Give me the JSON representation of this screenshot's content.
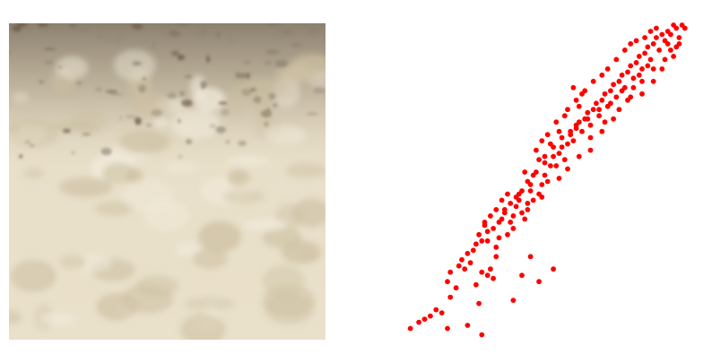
{
  "image_panel": {
    "subject": "sand-texture-photo",
    "colors": {
      "base": "#e6dcc4",
      "light": "#f2ecdc",
      "shadow": "#cdc0a2",
      "dark": "#8d8070",
      "debris": "#6e5a4a"
    }
  },
  "chart_data": {
    "type": "scatter",
    "title": "",
    "xlabel": "",
    "ylabel": "",
    "axes_visible": false,
    "grid": false,
    "legend": "none",
    "xlim": [
      0,
      1
    ],
    "ylim": [
      0,
      1
    ],
    "marker_color": "#ff0000",
    "series": [
      {
        "color": "#ff0000",
        "points": [
          [
            0.03,
            0.03
          ],
          [
            0.08,
            0.06
          ],
          [
            0.14,
            0.08
          ],
          [
            0.16,
            0.03
          ],
          [
            0.23,
            0.04
          ],
          [
            0.27,
            0.11
          ],
          [
            0.39,
            0.12
          ],
          [
            0.28,
            0.01
          ],
          [
            0.16,
            0.18
          ],
          [
            0.17,
            0.21
          ],
          [
            0.2,
            0.23
          ],
          [
            0.26,
            0.17
          ],
          [
            0.28,
            0.21
          ],
          [
            0.3,
            0.2
          ],
          [
            0.31,
            0.22
          ],
          [
            0.32,
            0.19
          ],
          [
            0.42,
            0.2
          ],
          [
            0.48,
            0.18
          ],
          [
            0.53,
            0.22
          ],
          [
            0.45,
            0.26
          ],
          [
            0.33,
            0.26
          ],
          [
            0.28,
            0.31
          ],
          [
            0.29,
            0.36
          ],
          [
            0.3,
            0.34
          ],
          [
            0.33,
            0.29
          ],
          [
            0.34,
            0.32
          ],
          [
            0.35,
            0.38
          ],
          [
            0.36,
            0.4
          ],
          [
            0.38,
            0.37
          ],
          [
            0.39,
            0.39
          ],
          [
            0.4,
            0.42
          ],
          [
            0.41,
            0.44
          ],
          [
            0.42,
            0.4
          ],
          [
            0.43,
            0.38
          ],
          [
            0.44,
            0.43
          ],
          [
            0.45,
            0.47
          ],
          [
            0.46,
            0.44
          ],
          [
            0.48,
            0.46
          ],
          [
            0.49,
            0.49
          ],
          [
            0.5,
            0.52
          ],
          [
            0.51,
            0.5
          ],
          [
            0.52,
            0.55
          ],
          [
            0.53,
            0.58
          ],
          [
            0.54,
            0.55
          ],
          [
            0.55,
            0.59
          ],
          [
            0.56,
            0.61
          ],
          [
            0.57,
            0.57
          ],
          [
            0.58,
            0.62
          ],
          [
            0.59,
            0.65
          ],
          [
            0.6,
            0.63
          ],
          [
            0.61,
            0.67
          ],
          [
            0.62,
            0.69
          ],
          [
            0.63,
            0.66
          ],
          [
            0.64,
            0.7
          ],
          [
            0.65,
            0.72
          ],
          [
            0.66,
            0.68
          ],
          [
            0.67,
            0.73
          ],
          [
            0.68,
            0.75
          ],
          [
            0.69,
            0.71
          ],
          [
            0.7,
            0.76
          ],
          [
            0.71,
            0.78
          ],
          [
            0.72,
            0.74
          ],
          [
            0.73,
            0.79
          ],
          [
            0.74,
            0.81
          ],
          [
            0.75,
            0.77
          ],
          [
            0.76,
            0.82
          ],
          [
            0.77,
            0.84
          ],
          [
            0.78,
            0.8
          ],
          [
            0.79,
            0.85
          ],
          [
            0.8,
            0.87
          ],
          [
            0.81,
            0.83
          ],
          [
            0.82,
            0.88
          ],
          [
            0.83,
            0.9
          ],
          [
            0.84,
            0.86
          ],
          [
            0.85,
            0.91
          ],
          [
            0.86,
            0.93
          ],
          [
            0.87,
            0.89
          ],
          [
            0.88,
            0.94
          ],
          [
            0.89,
            0.96
          ],
          [
            0.9,
            0.92
          ],
          [
            0.91,
            0.97
          ],
          [
            0.92,
            0.95
          ],
          [
            0.93,
            0.98
          ],
          [
            0.94,
            0.97
          ],
          [
            0.95,
            1.0
          ],
          [
            0.96,
            0.99
          ],
          [
            0.98,
            1.0
          ],
          [
            0.99,
            0.99
          ],
          [
            0.6,
            0.8
          ],
          [
            0.63,
            0.78
          ],
          [
            0.62,
            0.74
          ],
          [
            0.66,
            0.64
          ],
          [
            0.7,
            0.66
          ],
          [
            0.74,
            0.7
          ],
          [
            0.79,
            0.76
          ],
          [
            0.84,
            0.78
          ],
          [
            0.88,
            0.82
          ],
          [
            0.91,
            0.86
          ],
          [
            0.95,
            0.9
          ],
          [
            0.96,
            0.93
          ],
          [
            0.97,
            0.96
          ],
          [
            0.55,
            0.66
          ],
          [
            0.52,
            0.62
          ],
          [
            0.5,
            0.58
          ],
          [
            0.48,
            0.57
          ],
          [
            0.46,
            0.52
          ],
          [
            0.44,
            0.5
          ],
          [
            0.42,
            0.47
          ],
          [
            0.4,
            0.45
          ],
          [
            0.37,
            0.46
          ],
          [
            0.35,
            0.44
          ],
          [
            0.33,
            0.41
          ],
          [
            0.31,
            0.39
          ],
          [
            0.29,
            0.37
          ],
          [
            0.27,
            0.33
          ],
          [
            0.25,
            0.28
          ],
          [
            0.24,
            0.24
          ],
          [
            0.22,
            0.22
          ],
          [
            0.19,
            0.16
          ],
          [
            0.17,
            0.13
          ],
          [
            0.12,
            0.09
          ],
          [
            0.1,
            0.07
          ],
          [
            0.06,
            0.05
          ],
          [
            0.43,
            0.53
          ],
          [
            0.47,
            0.6
          ],
          [
            0.49,
            0.63
          ],
          [
            0.51,
            0.65
          ],
          [
            0.54,
            0.69
          ],
          [
            0.57,
            0.71
          ],
          [
            0.58,
            0.73
          ],
          [
            0.61,
            0.76
          ],
          [
            0.64,
            0.79
          ],
          [
            0.67,
            0.82
          ],
          [
            0.7,
            0.84
          ],
          [
            0.72,
            0.86
          ],
          [
            0.75,
            0.89
          ],
          [
            0.78,
            0.92
          ],
          [
            0.8,
            0.94
          ],
          [
            0.82,
            0.95
          ],
          [
            0.85,
            0.96
          ],
          [
            0.87,
            0.98
          ],
          [
            0.89,
            0.99
          ],
          [
            0.93,
            0.94
          ],
          [
            0.86,
            0.87
          ],
          [
            0.83,
            0.84
          ],
          [
            0.81,
            0.8
          ],
          [
            0.77,
            0.79
          ],
          [
            0.73,
            0.75
          ],
          [
            0.69,
            0.73
          ],
          [
            0.65,
            0.7
          ],
          [
            0.61,
            0.68
          ],
          [
            0.59,
            0.66
          ],
          [
            0.56,
            0.64
          ],
          [
            0.53,
            0.61
          ],
          [
            0.5,
            0.56
          ],
          [
            0.47,
            0.53
          ],
          [
            0.45,
            0.49
          ],
          [
            0.41,
            0.46
          ],
          [
            0.38,
            0.43
          ],
          [
            0.36,
            0.41
          ],
          [
            0.34,
            0.37
          ],
          [
            0.32,
            0.35
          ],
          [
            0.3,
            0.31
          ],
          [
            0.26,
            0.3
          ],
          [
            0.23,
            0.27
          ],
          [
            0.21,
            0.25
          ],
          [
            0.37,
            0.33
          ],
          [
            0.39,
            0.35
          ],
          [
            0.44,
            0.41
          ],
          [
            0.49,
            0.45
          ],
          [
            0.55,
            0.51
          ],
          [
            0.58,
            0.54
          ],
          [
            0.62,
            0.58
          ],
          [
            0.66,
            0.6
          ],
          [
            0.71,
            0.69
          ],
          [
            0.76,
            0.73
          ],
          [
            0.8,
            0.77
          ],
          [
            0.84,
            0.82
          ],
          [
            0.88,
            0.86
          ],
          [
            0.92,
            0.89
          ],
          [
            0.94,
            0.92
          ],
          [
            0.97,
            0.94
          ]
        ]
      }
    ]
  }
}
